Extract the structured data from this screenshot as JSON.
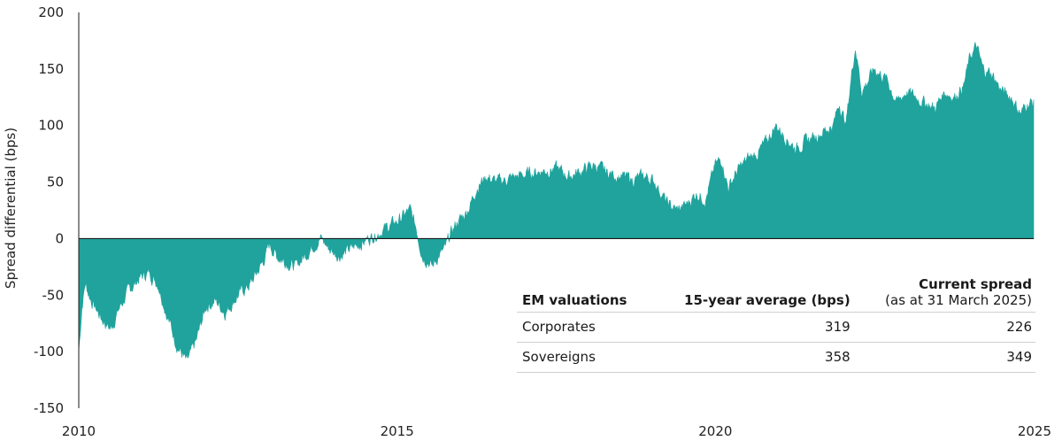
{
  "chart_data": {
    "type": "area",
    "title": "",
    "xlabel": "",
    "ylabel": "Spread differential (bps)",
    "xlim": [
      2010,
      2025
    ],
    "ylim": [
      -150,
      200
    ],
    "x_ticks": [
      "2010",
      "2015",
      "2020",
      "2025"
    ],
    "y_ticks": [
      "200",
      "150",
      "100",
      "50",
      "0",
      "-50",
      "-100",
      "-150"
    ],
    "color": "#1fa39c",
    "grid": false,
    "series": [
      {
        "x": [
          2010.0,
          2010.05,
          2010.1,
          2010.2,
          2010.35,
          2010.5,
          2010.65,
          2010.8,
          2010.95,
          2011.1,
          2011.25,
          2011.4,
          2011.55,
          2011.7,
          2011.85,
          2011.92,
          2012.0,
          2012.15,
          2012.3,
          2012.5,
          2012.7,
          2012.9,
          2013.0,
          2013.1,
          2013.25,
          2013.4,
          2013.55,
          2013.7,
          2013.8,
          2013.95,
          2014.1,
          2014.25,
          2014.4,
          2014.55,
          2014.7,
          2014.85,
          2015.0,
          2015.1,
          2015.2,
          2015.3,
          2015.4,
          2015.5,
          2015.55,
          2015.65,
          2015.75,
          2015.85,
          2015.95,
          2016.05,
          2016.15,
          2016.25,
          2016.4,
          2016.55,
          2016.7,
          2016.9,
          2017.1,
          2017.3,
          2017.5,
          2017.7,
          2017.9,
          2018.1,
          2018.3,
          2018.5,
          2018.7,
          2018.9,
          2019.05,
          2019.15,
          2019.25,
          2019.4,
          2019.55,
          2019.7,
          2019.85,
          2020.0,
          2020.1,
          2020.2,
          2020.35,
          2020.5,
          2020.65,
          2020.8,
          2020.95,
          2021.1,
          2021.25,
          2021.4,
          2021.55,
          2021.7,
          2021.85,
          2021.95,
          2022.05,
          2022.15,
          2022.2,
          2022.3,
          2022.4,
          2022.5,
          2022.6,
          2022.7,
          2022.85,
          2023.0,
          2023.15,
          2023.3,
          2023.45,
          2023.6,
          2023.75,
          2023.9,
          2024.0,
          2024.1,
          2024.2,
          2024.35,
          2024.5,
          2024.65,
          2024.8,
          2024.9,
          2025.0
        ],
        "values": [
          -100,
          -60,
          -40,
          -55,
          -70,
          -80,
          -60,
          -45,
          -35,
          -30,
          -40,
          -70,
          -95,
          -110,
          -90,
          -75,
          -60,
          -55,
          -65,
          -50,
          -40,
          -20,
          -5,
          -15,
          -20,
          -25,
          -15,
          -5,
          0,
          -10,
          -15,
          -10,
          -5,
          0,
          5,
          10,
          15,
          20,
          25,
          10,
          -15,
          -20,
          -25,
          -15,
          -10,
          5,
          15,
          20,
          30,
          45,
          55,
          50,
          52,
          55,
          58,
          60,
          62,
          55,
          60,
          65,
          58,
          55,
          52,
          55,
          50,
          40,
          30,
          25,
          30,
          40,
          35,
          65,
          70,
          45,
          60,
          70,
          75,
          85,
          100,
          90,
          80,
          85,
          90,
          95,
          100,
          120,
          100,
          150,
          170,
          130,
          140,
          150,
          145,
          140,
          120,
          130,
          125,
          120,
          115,
          130,
          125,
          135,
          160,
          170,
          150,
          145,
          130,
          125,
          110,
          120,
          120
        ]
      }
    ]
  },
  "table": {
    "headers": {
      "col1": "EM valuations",
      "col2": "15-year average (bps)",
      "col3": "Current spread",
      "col3_sub": "(as at 31 March 2025)"
    },
    "rows": [
      {
        "label": "Corporates",
        "avg": "319",
        "current": "226"
      },
      {
        "label": "Sovereigns",
        "avg": "358",
        "current": "349"
      }
    ]
  }
}
